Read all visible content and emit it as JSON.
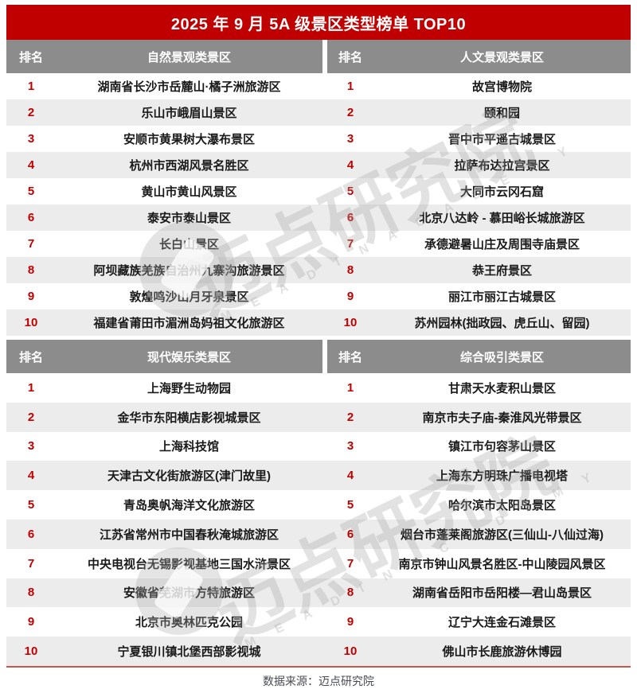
{
  "chart_data": {
    "type": "table",
    "title": "2025 年 9 月 5A 级景区类型榜单 TOP10",
    "tables": [
      {
        "headers": {
          "rank": "排名",
          "col_left": "自然景观类景区",
          "col_right": "人文景观类景区"
        },
        "rows": [
          {
            "rank": "1",
            "left": "湖南省长沙市岳麓山·橘子洲旅游区",
            "right": "故宫博物院"
          },
          {
            "rank": "2",
            "left": "乐山市峨眉山景区",
            "right": "颐和园"
          },
          {
            "rank": "3",
            "left": "安顺市黄果树大瀑布景区",
            "right": "晋中市平遥古城景区"
          },
          {
            "rank": "4",
            "left": "杭州市西湖风景名胜区",
            "right": "拉萨布达拉宫景区"
          },
          {
            "rank": "5",
            "left": "黄山市黄山风景区",
            "right": "大同市云冈石窟"
          },
          {
            "rank": "6",
            "left": "泰安市泰山景区",
            "right": "北京八达岭 - 慕田峪长城旅游区"
          },
          {
            "rank": "7",
            "left": "长白山景区",
            "right": "承德避暑山庄及周围寺庙景区"
          },
          {
            "rank": "8",
            "left": "阿坝藏族羌族自治州九寨沟旅游景区",
            "right": "恭王府景区"
          },
          {
            "rank": "9",
            "left": "敦煌鸣沙山月牙泉景区",
            "right": "丽江市丽江古城景区"
          },
          {
            "rank": "10",
            "left": "福建省莆田市湄洲岛妈祖文化旅游区",
            "right": "苏州园林(拙政园、虎丘山、留园)"
          }
        ]
      },
      {
        "headers": {
          "rank": "排名",
          "col_left": "现代娱乐类景区",
          "col_right": "综合吸引类景区"
        },
        "rows": [
          {
            "rank": "1",
            "left": "上海野生动物园",
            "right": "甘肃天水麦积山景区"
          },
          {
            "rank": "2",
            "left": "金华市东阳横店影视城景区",
            "right": "南京市夫子庙-秦淮风光带景区"
          },
          {
            "rank": "3",
            "left": "上海科技馆",
            "right": "镇江市句容茅山景区"
          },
          {
            "rank": "4",
            "left": "天津古文化街旅游区(津门故里)",
            "right": "上海东方明珠广播电视塔"
          },
          {
            "rank": "5",
            "left": "青岛奥帆海洋文化旅游区",
            "right": "哈尔滨市太阳岛景区"
          },
          {
            "rank": "6",
            "left": "江苏省常州市中国春秋淹城旅游区",
            "right": "烟台市蓬莱阁旅游区(三仙山-八仙过海)"
          },
          {
            "rank": "7",
            "left": "中央电视台无锡影视基地三国水浒景区",
            "right": "南京市钟山风景名胜区-中山陵园风景区"
          },
          {
            "rank": "8",
            "left": "安徽省芜湖市方特旅游区",
            "right": "湖南省岳阳市岳阳楼—君山岛景区"
          },
          {
            "rank": "9",
            "left": "北京市奥林匹克公园",
            "right": "辽宁大连金石滩景区"
          },
          {
            "rank": "10",
            "left": "宁夏银川镇北堡西部影视城",
            "right": "佛山市长鹿旅游休博园"
          }
        ]
      }
    ]
  },
  "footer": {
    "source": "数据来源：迈点研究院"
  },
  "watermark": {
    "cn": "迈点研究院",
    "en": "M E A D I N   A C A D E M Y"
  },
  "colors": {
    "accent_red": "#c00000",
    "header_gray": "#8c8c8c",
    "stripe_gray": "#ececec",
    "divider_red": "#c9544e"
  }
}
